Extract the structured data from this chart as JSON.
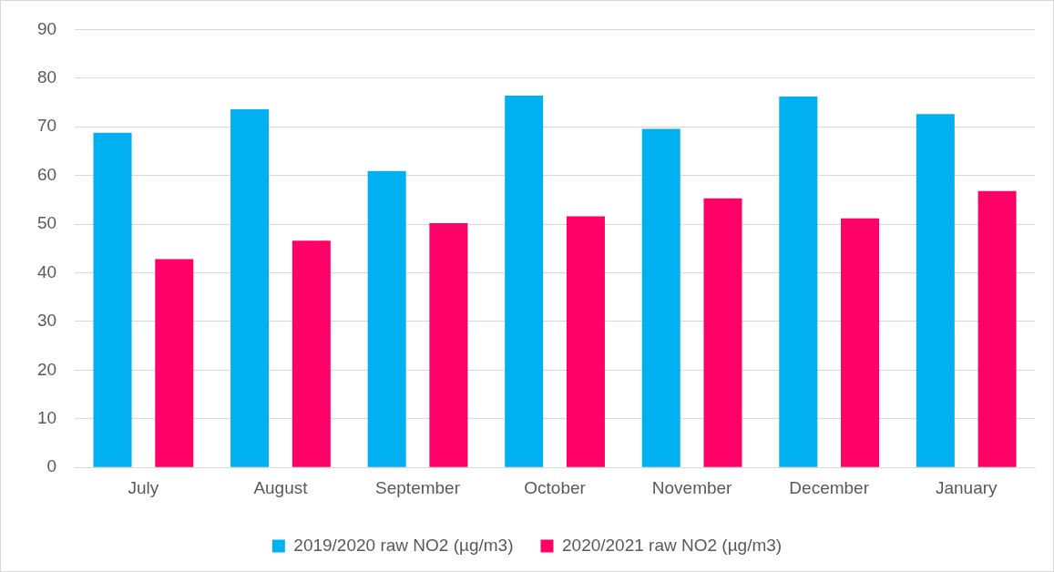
{
  "chart_data": {
    "type": "bar",
    "categories": [
      "July",
      "August",
      "September",
      "October",
      "November",
      "December",
      "January"
    ],
    "series": [
      {
        "name": "2019/2020 raw NO2 (µg/m3)",
        "color": "#00b0f0",
        "values": [
          68.8,
          73.6,
          60.9,
          76.4,
          69.6,
          76.2,
          72.6
        ]
      },
      {
        "name": "2020/2021 raw NO2 (µg/m3)",
        "color": "#ff0066",
        "values": [
          42.8,
          46.6,
          50.2,
          51.6,
          55.3,
          51.2,
          56.8
        ]
      }
    ],
    "ylim": [
      0,
      90
    ],
    "yticks": [
      0,
      10,
      20,
      30,
      40,
      50,
      60,
      70,
      80,
      90
    ],
    "grid": "y",
    "legend": "bottom"
  }
}
